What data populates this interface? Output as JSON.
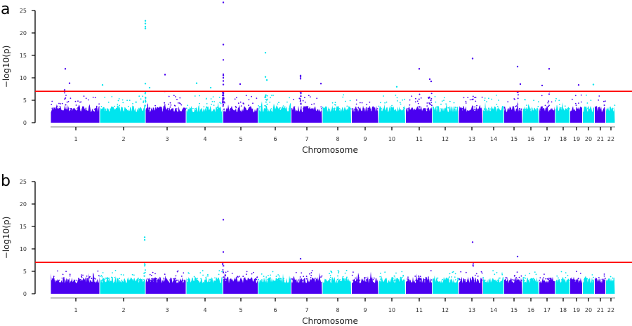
{
  "chart_data": [
    {
      "type": "scatter",
      "panel_label": "a",
      "xlabel": "Chromosome",
      "ylabel": "−log10(p)",
      "ylim": [
        0,
        25
      ],
      "yticks": [
        "0",
        "5",
        "10",
        "15",
        "20",
        "25"
      ],
      "categories": [
        "1",
        "2",
        "3",
        "4",
        "5",
        "6",
        "7",
        "8",
        "9",
        "10",
        "11",
        "12",
        "13",
        "14",
        "15",
        "16",
        "17",
        "18",
        "19",
        "20",
        "21",
        "22"
      ],
      "threshold": 7,
      "colors": {
        "odd": "#4a00f0",
        "even": "#00e5ee",
        "threshold": "#ff0000"
      },
      "grid": false,
      "peaks": [
        {
          "chr": "1",
          "y": 7.3
        },
        {
          "chr": "1",
          "y": 12
        },
        {
          "chr": "1",
          "y": 8.8
        },
        {
          "chr": "2",
          "y": 8.4
        },
        {
          "chr": "2",
          "y": 7.8
        },
        {
          "chr": "2",
          "y": 22.7
        },
        {
          "chr": "2",
          "y": 22.1
        },
        {
          "chr": "2",
          "y": 21.4
        },
        {
          "chr": "2",
          "y": 21
        },
        {
          "chr": "2",
          "y": 8.7
        },
        {
          "chr": "3",
          "y": 10.7
        },
        {
          "chr": "4",
          "y": 8.8
        },
        {
          "chr": "4",
          "y": 7.8
        },
        {
          "chr": "5",
          "y": 26.8
        },
        {
          "chr": "5",
          "y": 17.4
        },
        {
          "chr": "5",
          "y": 14
        },
        {
          "chr": "5",
          "y": 10.8
        },
        {
          "chr": "5",
          "y": 10.5
        },
        {
          "chr": "5",
          "y": 10
        },
        {
          "chr": "5",
          "y": 9.3
        },
        {
          "chr": "5",
          "y": 8.5
        },
        {
          "chr": "5",
          "y": 8.6
        },
        {
          "chr": "6",
          "y": 15.6
        },
        {
          "chr": "6",
          "y": 10.2
        },
        {
          "chr": "6",
          "y": 9.5
        },
        {
          "chr": "7",
          "y": 10.5
        },
        {
          "chr": "7",
          "y": 10.2
        },
        {
          "chr": "7",
          "y": 9.8
        },
        {
          "chr": "7",
          "y": 8.7
        },
        {
          "chr": "10",
          "y": 8
        },
        {
          "chr": "11",
          "y": 12
        },
        {
          "chr": "11",
          "y": 9.7
        },
        {
          "chr": "11",
          "y": 9.2
        },
        {
          "chr": "13",
          "y": 14.3
        },
        {
          "chr": "15",
          "y": 12.5
        },
        {
          "chr": "15",
          "y": 8.6
        },
        {
          "chr": "17",
          "y": 12
        },
        {
          "chr": "17",
          "y": 8.3
        },
        {
          "chr": "19",
          "y": 8.4
        },
        {
          "chr": "20",
          "y": 8.5
        }
      ]
    },
    {
      "type": "scatter",
      "panel_label": "b",
      "xlabel": "Chromosome",
      "ylabel": "−log10(p)",
      "ylim": [
        0,
        25
      ],
      "yticks": [
        "0",
        "5",
        "10",
        "15",
        "20",
        "25"
      ],
      "categories": [
        "1",
        "2",
        "3",
        "4",
        "5",
        "6",
        "7",
        "8",
        "9",
        "10",
        "11",
        "12",
        "13",
        "14",
        "15",
        "16",
        "17",
        "18",
        "19",
        "20",
        "21",
        "22"
      ],
      "threshold": 7,
      "colors": {
        "odd": "#4a00f0",
        "even": "#00e5ee",
        "threshold": "#ff0000"
      },
      "grid": false,
      "peaks": [
        {
          "chr": "2",
          "y": 12.6
        },
        {
          "chr": "2",
          "y": 12
        },
        {
          "chr": "5",
          "y": 16.5
        },
        {
          "chr": "5",
          "y": 9.3
        },
        {
          "chr": "7",
          "y": 7.8
        },
        {
          "chr": "13",
          "y": 11.5
        },
        {
          "chr": "15",
          "y": 8.3
        }
      ]
    }
  ]
}
